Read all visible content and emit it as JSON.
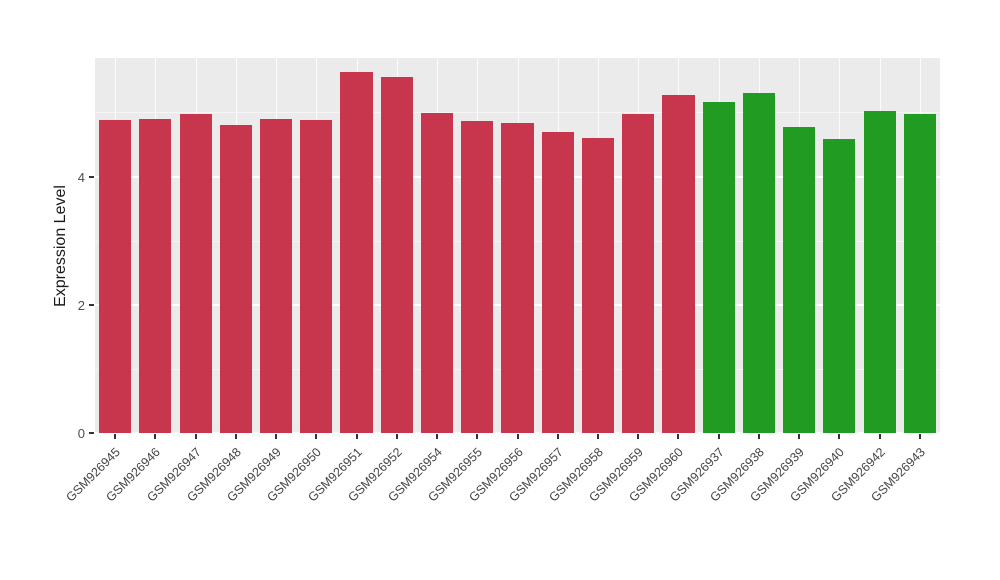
{
  "chart_data": {
    "type": "bar",
    "title": "",
    "xlabel": "",
    "ylabel": "Expression Level",
    "ylim": [
      0,
      5.85
    ],
    "yticks_major": [
      0,
      2,
      4
    ],
    "yticks_minor": [
      1,
      3,
      5
    ],
    "grid": true,
    "legend": "none",
    "panel_background": "#EBEBEB",
    "bar_group_colors": {
      "group1": "#C8364E",
      "group2": "#229B22"
    },
    "categories": [
      "GSM926945",
      "GSM926946",
      "GSM926947",
      "GSM926948",
      "GSM926949",
      "GSM926950",
      "GSM926951",
      "GSM926952",
      "GSM926954",
      "GSM926955",
      "GSM926956",
      "GSM926957",
      "GSM926958",
      "GSM926959",
      "GSM926960",
      "GSM926937",
      "GSM926938",
      "GSM926939",
      "GSM926940",
      "GSM926942",
      "GSM926943"
    ],
    "values": [
      4.88,
      4.9,
      4.98,
      4.8,
      4.9,
      4.88,
      5.63,
      5.56,
      5.0,
      4.86,
      4.84,
      4.7,
      4.6,
      4.98,
      5.27,
      5.17,
      5.31,
      4.78,
      4.58,
      5.02,
      4.98
    ],
    "colors": [
      "#C8364E",
      "#C8364E",
      "#C8364E",
      "#C8364E",
      "#C8364E",
      "#C8364E",
      "#C8364E",
      "#C8364E",
      "#C8364E",
      "#C8364E",
      "#C8364E",
      "#C8364E",
      "#C8364E",
      "#C8364E",
      "#C8364E",
      "#229B22",
      "#229B22",
      "#229B22",
      "#229B22",
      "#229B22",
      "#229B22"
    ]
  }
}
